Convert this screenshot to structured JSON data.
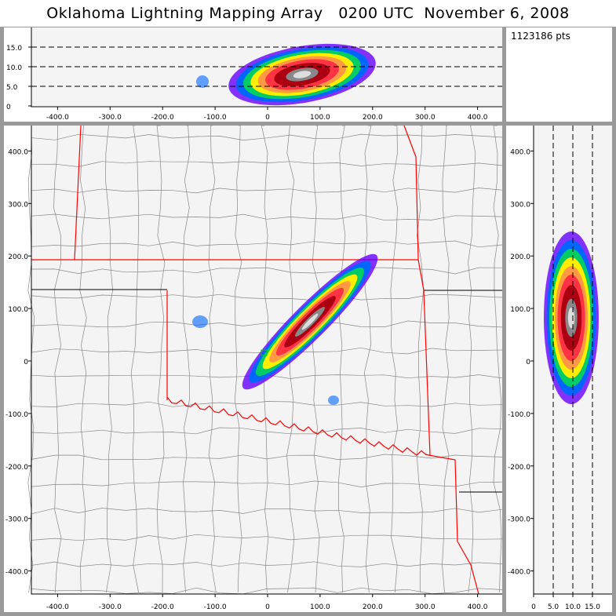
{
  "title": "Oklahoma Lightning Mapping Array   0200 UTC  November 6, 2008",
  "stats": {
    "points_label": "1123186 pts"
  },
  "top_panel": {
    "x_ticks": [
      "-400.0",
      "-300.0",
      "-200.0",
      "-100.0",
      "0",
      "100.0",
      "200.0",
      "300.0",
      "400.0"
    ],
    "y_ticks": [
      "0",
      "5.0",
      "10.0",
      "15.0"
    ]
  },
  "main_panel": {
    "x_ticks": [
      "-400.0",
      "-300.0",
      "-200.0",
      "-100.0",
      "0",
      "100.0",
      "200.0",
      "300.0",
      "400.0"
    ],
    "y_ticks": [
      "400.0",
      "300.0",
      "200.0",
      "100.0",
      "0",
      "-100.0",
      "-200.0",
      "-300.0",
      "-400.0"
    ]
  },
  "side_panel": {
    "x_ticks": [
      "0",
      "5.0",
      "10.0",
      "15.0"
    ],
    "y_ticks": [
      "400.0",
      "300.0",
      "200.0",
      "100.0",
      "0",
      "-100.0",
      "-200.0",
      "-300.0",
      "-400.0"
    ]
  },
  "colors": {
    "state_border": "#ff0000",
    "county_line": "#888888",
    "plot_bg": "#f4f4f4",
    "frame": "#9a9a9a"
  },
  "density_palette": [
    "#ff99ff",
    "#6600ff",
    "#0066ff",
    "#00cc66",
    "#66cc00",
    "#ffee00",
    "#ff9944",
    "#ff3344",
    "#dd0022",
    "#aa0011",
    "#000000",
    "#888888",
    "#dddddd"
  ]
}
